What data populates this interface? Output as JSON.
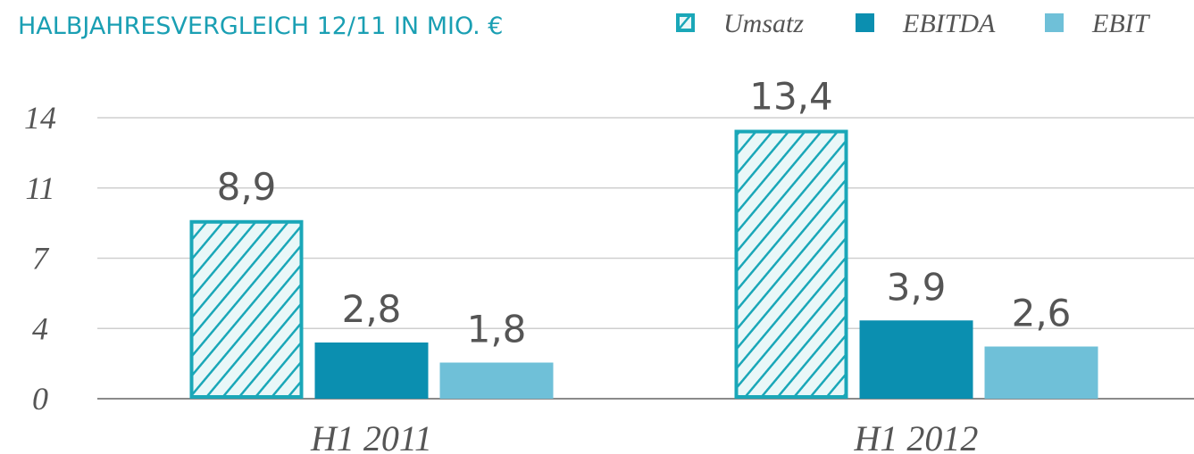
{
  "chart_data": {
    "type": "bar",
    "title": "HALBJAHRESVERGLEICH 12/11 IN MIO. €",
    "categories": [
      "H1 2011",
      "H1 2012"
    ],
    "series": [
      {
        "name": "Umsatz",
        "color": "#1aa7b8",
        "hatch": true,
        "values": [
          8.9,
          13.4
        ],
        "value_labels": [
          "8,9",
          "13,4"
        ]
      },
      {
        "name": "EBITDA",
        "color": "#0b8fb0",
        "values": [
          2.8,
          3.9
        ],
        "value_labels": [
          "2,8",
          "3,9"
        ]
      },
      {
        "name": "EBIT",
        "color": "#6fc0d8",
        "values": [
          1.8,
          2.6
        ],
        "value_labels": [
          "1,8",
          "2,6"
        ]
      }
    ],
    "ylim": [
      0,
      14
    ],
    "yticks": [
      0,
      {
        "value": 3.5,
        "label": "4"
      },
      7,
      {
        "value": 10.5,
        "label": "11"
      },
      14
    ],
    "grid": true
  }
}
